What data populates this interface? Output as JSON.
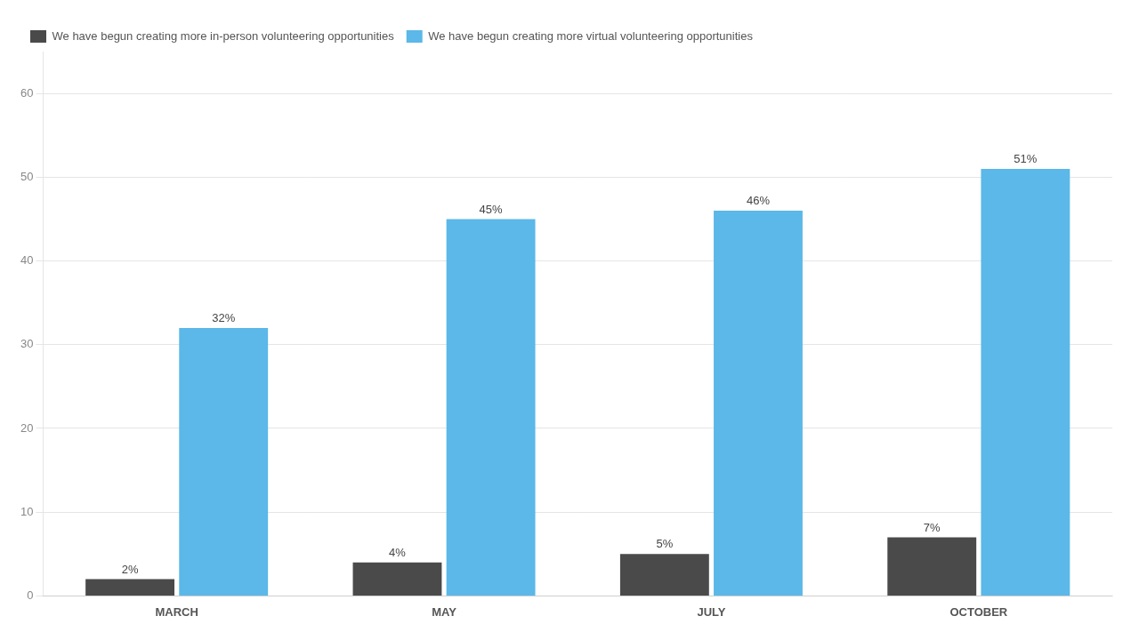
{
  "chart_data": {
    "type": "bar",
    "categories": [
      "MARCH",
      "MAY",
      "JULY",
      "OCTOBER"
    ],
    "series": [
      {
        "name": "We have begun creating more in-person volunteering opportunities",
        "color": "#4a4a4a",
        "values": [
          2,
          4,
          5,
          7
        ],
        "value_labels": [
          "2%",
          "4%",
          "5%",
          "7%"
        ]
      },
      {
        "name": "We have begun creating more virtual volunteering opportunities",
        "color": "#5bb8e8",
        "values": [
          32,
          45,
          46,
          51
        ],
        "value_labels": [
          "32%",
          "45%",
          "46%",
          "51%"
        ]
      }
    ],
    "ylim": [
      0,
      65
    ],
    "yticks": [
      0,
      10,
      20,
      30,
      40,
      50,
      60
    ],
    "grid": true,
    "legend": "upper left",
    "data_labels": true
  }
}
